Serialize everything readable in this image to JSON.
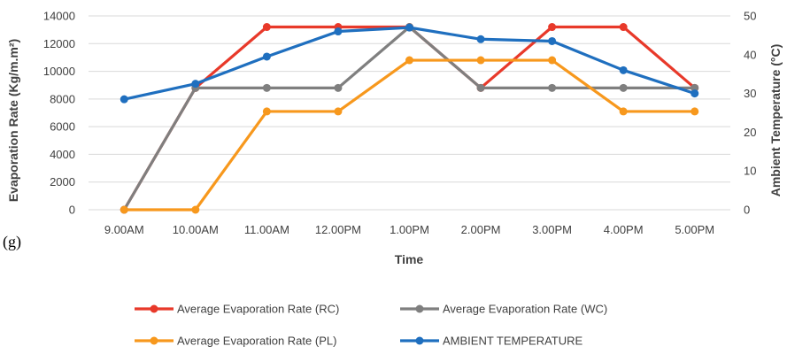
{
  "panel_label": "(g)",
  "chart_data": {
    "type": "line",
    "title": "",
    "xlabel": "Time",
    "ylabel": "Evaporation Rate (Kg/m.m²)",
    "y2label": "Ambient Temperature (°C)",
    "categories": [
      "9.00AM",
      "10.00AM",
      "11.00AM",
      "12.00PM",
      "1.00PM",
      "2.00PM",
      "3.00PM",
      "4.00PM",
      "5.00PM"
    ],
    "ylim": [
      0,
      14000
    ],
    "yticks": [
      0,
      2000,
      4000,
      6000,
      8000,
      10000,
      12000,
      14000
    ],
    "y2lim": [
      0,
      50
    ],
    "y2ticks": [
      0,
      10,
      20,
      30,
      40,
      50
    ],
    "grid": true,
    "legend_position": "bottom",
    "series": [
      {
        "name": "Average Evaporation Rate (RC)",
        "axis": "left",
        "color": "#e8392a",
        "values": [
          0,
          8800,
          13200,
          13200,
          13200,
          8800,
          13200,
          13200,
          8800
        ]
      },
      {
        "name": "Average Evaporation Rate (WC)",
        "axis": "left",
        "color": "#7f7f7f",
        "values": [
          0,
          8800,
          8800,
          8800,
          13200,
          8800,
          8800,
          8800,
          8800
        ]
      },
      {
        "name": "Average Evaporation Rate (PL)",
        "axis": "left",
        "color": "#f7981d",
        "values": [
          0,
          0,
          7100,
          7100,
          10800,
          10800,
          10800,
          7100,
          7100
        ]
      },
      {
        "name": "AMBIENT TEMPERATURE",
        "axis": "right",
        "color": "#1f6fbf",
        "values": [
          28.5,
          32.5,
          39.5,
          46,
          47,
          44,
          43.5,
          36,
          30
        ]
      }
    ]
  }
}
